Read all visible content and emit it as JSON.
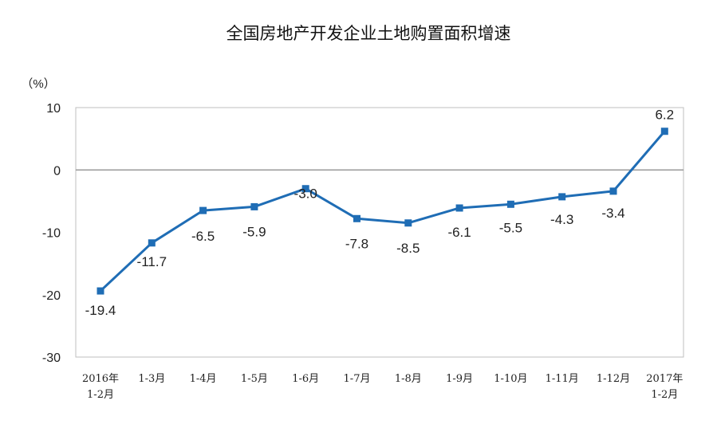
{
  "chart_data": {
    "type": "line",
    "title": "全国房地产开发企业土地购置面积增速",
    "ylabel": "（%）",
    "xlabel": "",
    "ylim": [
      -30,
      10
    ],
    "yticks": [
      "10",
      "0",
      "-10",
      "-20",
      "-30"
    ],
    "grid": false,
    "categories": [
      [
        "2016年",
        "1-2月"
      ],
      [
        "1-3月"
      ],
      [
        "1-4月"
      ],
      [
        "1-5月"
      ],
      [
        "1-6月"
      ],
      [
        "1-7月"
      ],
      [
        "1-8月"
      ],
      [
        "1-9月"
      ],
      [
        "1-10月"
      ],
      [
        "1-11月"
      ],
      [
        "1-12月"
      ],
      [
        "2017年",
        "1-2月"
      ]
    ],
    "values": [
      -19.4,
      -11.7,
      -6.5,
      -5.9,
      -3.0,
      -7.8,
      -8.5,
      -6.1,
      -5.5,
      -4.3,
      -3.4,
      6.2
    ],
    "data_labels": [
      "-19.4",
      "-11.7",
      "-6.5",
      "-5.9",
      "-3.0",
      "-7.8",
      "-8.5",
      "-6.1",
      "-5.5",
      "-4.3",
      "-3.4",
      "6.2"
    ],
    "colors": {
      "line": "#1f6db5",
      "axis": "#9a9a9a",
      "frame": "#bfbfbf"
    }
  }
}
